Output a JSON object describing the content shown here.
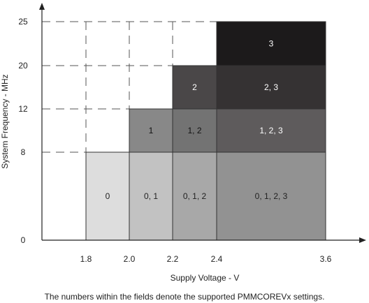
{
  "chart_data": {
    "type": "heatmap",
    "xlabel": "Supply Voltage - V",
    "ylabel": "System Frequency - MHz",
    "x_ticks": [
      1.8,
      2.0,
      2.2,
      2.4,
      3.6
    ],
    "x_tick_labels": [
      "1.8",
      "2.0",
      "2.2",
      "2.4",
      "3.6"
    ],
    "y_ticks": [
      0,
      8,
      12,
      20,
      25
    ],
    "y_tick_labels": [
      "0",
      "8",
      "12",
      "20",
      "25"
    ],
    "cells": [
      {
        "v0": 1.8,
        "v1": 2.0,
        "f0": 0,
        "f1": 8,
        "label": "0",
        "color": "#dddddd",
        "text_color": "#222222"
      },
      {
        "v0": 2.0,
        "v1": 2.2,
        "f0": 0,
        "f1": 8,
        "label": "0, 1",
        "color": "#c2c2c2",
        "text_color": "#222222"
      },
      {
        "v0": 2.2,
        "v1": 2.4,
        "f0": 0,
        "f1": 8,
        "label": "0, 1, 2",
        "color": "#a8a8a8",
        "text_color": "#222222"
      },
      {
        "v0": 2.4,
        "v1": 3.6,
        "f0": 0,
        "f1": 8,
        "label": "0, 1, 2, 3",
        "color": "#929292",
        "text_color": "#222222"
      },
      {
        "v0": 2.0,
        "v1": 2.2,
        "f0": 8,
        "f1": 12,
        "label": "1",
        "color": "#888888",
        "text_color": "#111111"
      },
      {
        "v0": 2.2,
        "v1": 2.4,
        "f0": 8,
        "f1": 12,
        "label": "1, 2",
        "color": "#737373",
        "text_color": "#111111"
      },
      {
        "v0": 2.4,
        "v1": 3.6,
        "f0": 8,
        "f1": 12,
        "label": "1, 2, 3",
        "color": "#5e5b5c",
        "text_color": "#ffffff"
      },
      {
        "v0": 2.2,
        "v1": 2.4,
        "f0": 12,
        "f1": 20,
        "label": "2",
        "color": "#4a4748",
        "text_color": "#ffffff"
      },
      {
        "v0": 2.4,
        "v1": 3.6,
        "f0": 12,
        "f1": 20,
        "label": "2, 3",
        "color": "#353233",
        "text_color": "#ffffff"
      },
      {
        "v0": 2.4,
        "v1": 3.6,
        "f0": 20,
        "f1": 25,
        "label": "3",
        "color": "#1c1a1b",
        "text_color": "#ffffff"
      }
    ],
    "grid_dashed": true
  },
  "caption": "The numbers within the fields denote the supported PMMCOREVx settings.",
  "colors": {
    "axis": "#222222",
    "grid_dash": "#555555",
    "cell_border": "#333333"
  }
}
